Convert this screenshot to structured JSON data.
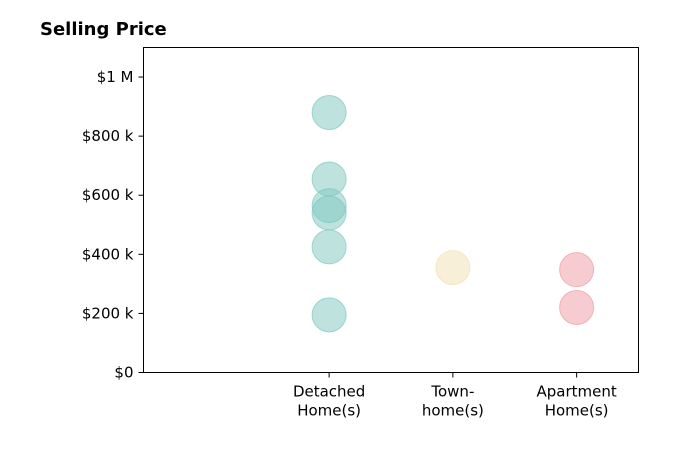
{
  "chart_data": {
    "type": "scatter",
    "title": "Selling Price",
    "xlabel": "",
    "ylabel": "",
    "categories": [
      [
        "Detached",
        "Home(s)"
      ],
      [
        "Town-",
        "home(s)"
      ],
      [
        "Apartment",
        "Home(s)"
      ]
    ],
    "y_ticks": [
      {
        "value": 0,
        "label": "$0"
      },
      {
        "value": 200000,
        "label": "$200 k"
      },
      {
        "value": 400000,
        "label": "$400 k"
      },
      {
        "value": 600000,
        "label": "$600 k"
      },
      {
        "value": 800000,
        "label": "$800 k"
      },
      {
        "value": 1000000,
        "label": "$1 M"
      }
    ],
    "ylim": [
      0,
      1100000
    ],
    "xlim": [
      -0.5,
      3.5
    ],
    "grid": false,
    "series": [
      {
        "category": 0,
        "color": "#7ec8c0",
        "values": [
          880000,
          655000,
          565000,
          540000,
          425000,
          195000
        ]
      },
      {
        "category": 1,
        "color": "#f2dfb4",
        "values": [
          355000
        ]
      },
      {
        "category": 2,
        "color": "#f09aa4",
        "values": [
          348000,
          220000
        ]
      }
    ]
  }
}
